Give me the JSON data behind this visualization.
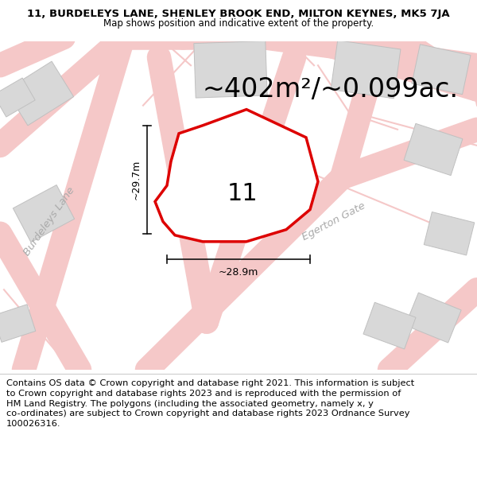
{
  "title_line1": "11, BURDELEYS LANE, SHENLEY BROOK END, MILTON KEYNES, MK5 7JA",
  "title_line2": "Map shows position and indicative extent of the property.",
  "area_text": "~402m²/~0.099ac.",
  "width_label": "~28.9m",
  "height_label": "~29.7m",
  "plot_number": "11",
  "road_label_1": "Burdeleys Lane",
  "road_label_2": "Egerton Gate",
  "footer_text": "Contains OS data © Crown copyright and database right 2021. This information is subject to Crown copyright and database rights 2023 and is reproduced with the permission of HM Land Registry. The polygons (including the associated geometry, namely x, y co-ordinates) are subject to Crown copyright and database rights 2023 Ordnance Survey 100026316.",
  "bg_color": "#f0eeec",
  "map_bg": "#f0eeec",
  "footer_bg": "#ffffff",
  "road_color": "#f5c8c8",
  "building_color": "#d8d8d8",
  "building_edge": "#c0c0c0",
  "plot_outline_color": "#dd0000",
  "plot_fill_color": "#ffffff",
  "dim_line_color": "#111111",
  "title_fontsize": 9.5,
  "subtitle_fontsize": 8.5,
  "area_fontsize": 24,
  "plot_num_fontsize": 22,
  "road_label_fontsize": 9.5,
  "dim_label_fontsize": 9,
  "footer_fontsize": 8.2
}
